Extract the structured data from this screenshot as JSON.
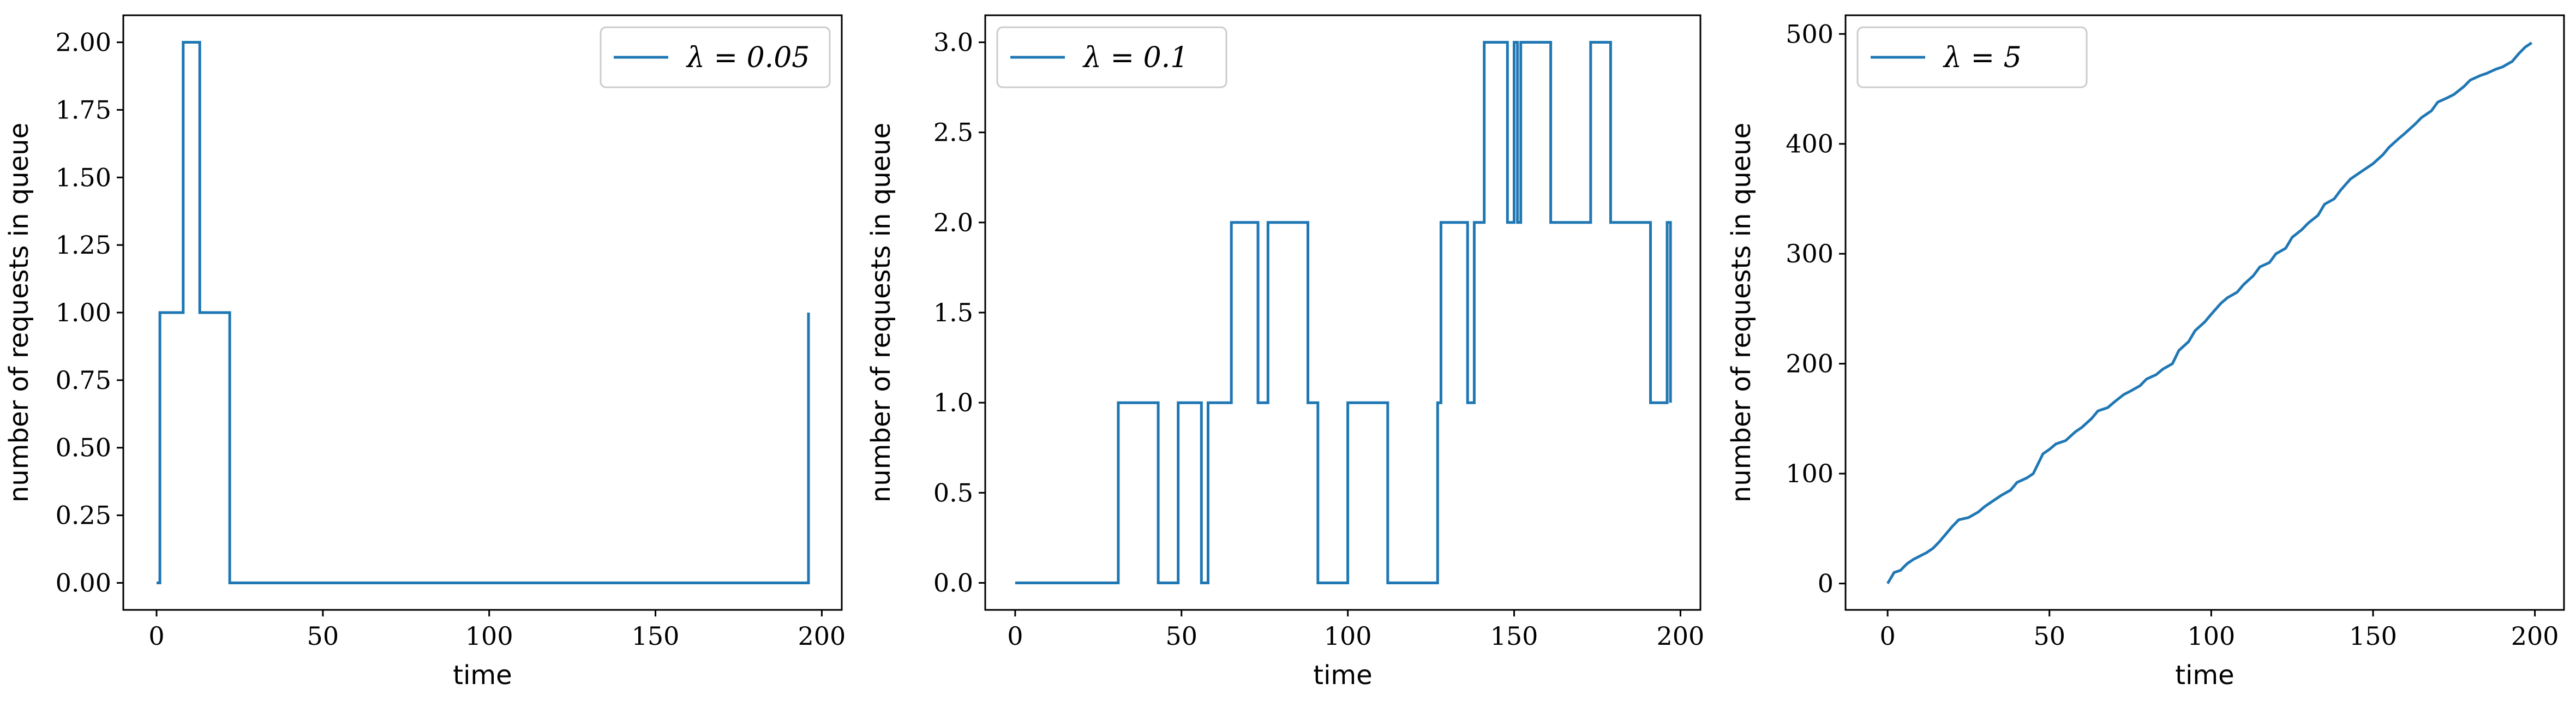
{
  "colors": {
    "line": "#1f77b4",
    "axes": "#000000",
    "legend_border": "#cccccc"
  },
  "chart_data": [
    {
      "type": "line",
      "drawstyle": "steps-post",
      "xlabel": "time",
      "ylabel": "number of requests in queue",
      "xlim": [
        -10,
        206
      ],
      "ylim": [
        -0.1,
        2.1
      ],
      "xticks": [
        0,
        50,
        100,
        150,
        200
      ],
      "yticks": [
        0.0,
        0.25,
        0.5,
        0.75,
        1.0,
        1.25,
        1.5,
        1.75,
        2.0
      ],
      "ytick_labels": [
        "0.00",
        "0.25",
        "0.50",
        "0.75",
        "1.00",
        "1.25",
        "1.50",
        "1.75",
        "2.00"
      ],
      "legend": "upper right",
      "series": [
        {
          "name": "λ = 0.05",
          "x": [
            0,
            1,
            8,
            13,
            22,
            196,
            196
          ],
          "y": [
            0,
            1,
            2,
            1,
            0,
            0,
            1
          ]
        }
      ]
    },
    {
      "type": "line",
      "drawstyle": "steps-post",
      "xlabel": "time",
      "ylabel": "number of requests in queue",
      "xlim": [
        -9,
        206
      ],
      "ylim": [
        -0.15,
        3.15
      ],
      "xticks": [
        0,
        50,
        100,
        150,
        200
      ],
      "yticks": [
        0.0,
        0.5,
        1.0,
        1.5,
        2.0,
        2.5,
        3.0
      ],
      "ytick_labels": [
        "0.0",
        "0.5",
        "1.0",
        "1.5",
        "2.0",
        "2.5",
        "3.0"
      ],
      "legend": "upper left",
      "series": [
        {
          "name": "λ = 0.1",
          "x": [
            0,
            31,
            43,
            49,
            56,
            58,
            65,
            73,
            76,
            88,
            91,
            100,
            112,
            127,
            128,
            136,
            138,
            141,
            148,
            150,
            151,
            152,
            153,
            161,
            173,
            179,
            191,
            196,
            197
          ],
          "y": [
            0,
            1,
            0,
            1,
            0,
            1,
            2,
            1,
            2,
            1,
            0,
            1,
            0,
            1,
            2,
            1,
            2,
            3,
            2,
            3,
            2,
            3,
            3,
            2,
            3,
            2,
            1,
            2,
            1
          ]
        }
      ]
    },
    {
      "type": "line",
      "drawstyle": "line",
      "xlabel": "time",
      "ylabel": "number of requests in queue",
      "xlim": [
        -13,
        209
      ],
      "ylim": [
        -24,
        517
      ],
      "xticks": [
        0,
        50,
        100,
        150,
        200
      ],
      "yticks": [
        0,
        100,
        200,
        300,
        400,
        500
      ],
      "ytick_labels": [
        "0",
        "100",
        "200",
        "300",
        "400",
        "500"
      ],
      "legend": "upper left",
      "series": [
        {
          "name": "λ = 5",
          "x": [
            0,
            1,
            2,
            4,
            5,
            6,
            8,
            10,
            12,
            14,
            16,
            18,
            20,
            22,
            25,
            28,
            30,
            33,
            35,
            38,
            40,
            43,
            45,
            48,
            50,
            52,
            55,
            58,
            60,
            63,
            65,
            68,
            70,
            73,
            75,
            78,
            80,
            83,
            85,
            88,
            90,
            93,
            95,
            98,
            100,
            103,
            105,
            108,
            110,
            113,
            115,
            118,
            120,
            123,
            125,
            128,
            130,
            133,
            135,
            138,
            140,
            143,
            145,
            148,
            150,
            153,
            155,
            158,
            160,
            163,
            165,
            168,
            170,
            173,
            175,
            178,
            180,
            183,
            185,
            188,
            190,
            193,
            195,
            197,
            199
          ],
          "y": [
            0,
            5,
            10,
            12,
            15,
            18,
            22,
            25,
            28,
            32,
            38,
            45,
            52,
            58,
            60,
            65,
            70,
            76,
            80,
            85,
            92,
            96,
            100,
            118,
            122,
            127,
            130,
            138,
            142,
            150,
            157,
            160,
            165,
            172,
            175,
            180,
            186,
            190,
            195,
            200,
            212,
            220,
            230,
            238,
            245,
            255,
            260,
            265,
            272,
            280,
            288,
            292,
            300,
            305,
            315,
            322,
            328,
            335,
            345,
            350,
            358,
            368,
            372,
            378,
            382,
            390,
            397,
            405,
            410,
            418,
            424,
            430,
            438,
            442,
            445,
            452,
            458,
            462,
            464,
            468,
            470,
            475,
            482,
            488,
            492
          ]
        }
      ]
    }
  ]
}
